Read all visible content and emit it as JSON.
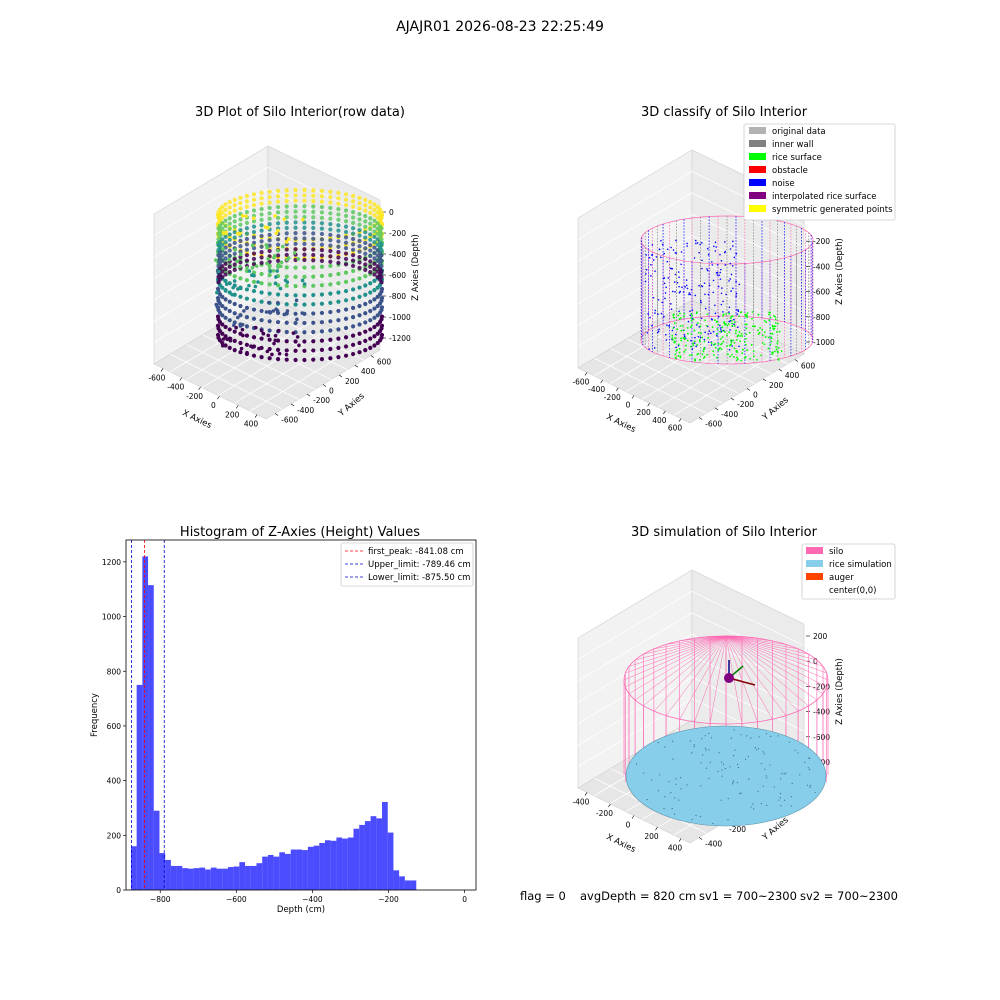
{
  "figure": {
    "suptitle": "AJAJR01 2026-08-23 22:25:49",
    "footer": {
      "flag": "flag = 0",
      "avg_depth": "avgDepth = 820 cm",
      "sv1": "sv1 = 700~2300",
      "sv2": "sv2 = 700~2300"
    }
  },
  "chart_data": [
    {
      "id": "raw3d",
      "type": "scatter",
      "title": "3D Plot of Silo Interior(row data)",
      "xlabel": "X Axies",
      "ylabel": "Y Axies",
      "zlabel": "Z Axies (Depth)",
      "xticks": [
        "-600",
        "-400",
        "-200",
        "0",
        "200",
        "400"
      ],
      "yticks": [
        "-600",
        "-400",
        "-200",
        "0",
        "200",
        "400",
        "600"
      ],
      "zticks": [
        "0",
        "-200",
        "-400",
        "-600",
        "-800",
        "-1000",
        "-1200"
      ],
      "colormap": [
        "#440154",
        "#3b528b",
        "#21918c",
        "#5ec962",
        "#fde725"
      ],
      "colorbar": false,
      "legend": "none",
      "grid": true
    },
    {
      "id": "classify3d",
      "type": "scatter",
      "title": "3D classify of Silo Interior",
      "xlabel": "X Axies",
      "ylabel": "Y Axies",
      "zlabel": "Z Axies (Depth)",
      "xticks": [
        "-600",
        "-400",
        "-200",
        "0",
        "200",
        "400",
        "600"
      ],
      "yticks": [
        "-600",
        "-400",
        "-200",
        "0",
        "200",
        "400",
        "600"
      ],
      "zticks": [
        "0",
        "-200",
        "-400",
        "-600",
        "-800",
        "-1000"
      ],
      "legend_placement": "top-right",
      "grid": true,
      "series": [
        {
          "name": "original data",
          "color": "#b3b3b3"
        },
        {
          "name": "inner wall",
          "color": "#808080"
        },
        {
          "name": "rice surface",
          "color": "#00ff00"
        },
        {
          "name": "obstacle",
          "color": "#ff0000"
        },
        {
          "name": "noise",
          "color": "#0000ff"
        },
        {
          "name": "interpolated rice surface",
          "color": "#800080"
        },
        {
          "name": "symmetric generated points",
          "color": "#ffff00"
        }
      ]
    },
    {
      "id": "histogram",
      "type": "bar",
      "title": "Histogram of Z-Axies (Height) Values",
      "xlabel": "Depth (cm)",
      "ylabel": "Frequency",
      "xlim": [
        -890,
        30
      ],
      "ylim": [
        0,
        1280
      ],
      "xticks": [
        -800,
        -600,
        -400,
        -200,
        0
      ],
      "yticks": [
        0,
        200,
        400,
        600,
        800,
        1000,
        1200
      ],
      "bar_color": "#0000ff",
      "bar_alpha": 0.7,
      "bin_start": -877,
      "bin_width": 15,
      "values": [
        160,
        750,
        1220,
        1115,
        290,
        135,
        110,
        88,
        88,
        80,
        78,
        80,
        82,
        75,
        82,
        78,
        78,
        84,
        86,
        102,
        88,
        88,
        98,
        122,
        128,
        122,
        138,
        132,
        148,
        148,
        146,
        158,
        162,
        172,
        182,
        180,
        192,
        188,
        192,
        224,
        238,
        252,
        270,
        262,
        322,
        210,
        72,
        50,
        35,
        35
      ],
      "legend_placement": "upper right",
      "vlines": [
        {
          "label": "first_peak: -841.08 cm",
          "x": -841.08,
          "color": "#ff0000"
        },
        {
          "label": "Upper_limit: -789.46 cm",
          "x": -789.46,
          "color": "#0000cc"
        },
        {
          "label": "Lower_limit: -875.50 cm",
          "x": -875.5,
          "color": "#0000cc"
        }
      ]
    },
    {
      "id": "simulation3d",
      "type": "scatter",
      "title": "3D simulation of Silo Interior",
      "xlabel": "X Axies",
      "ylabel": "Y Axies",
      "zlabel": "Z Axies (Depth)",
      "xticks": [
        "-400",
        "-200",
        "0",
        "200",
        "400"
      ],
      "yticks": [
        "-400",
        "-200",
        "0",
        "200",
        "400"
      ],
      "zticks": [
        "200",
        "0",
        "-200",
        "-400",
        "-600",
        "-800"
      ],
      "legend_placement": "top-right",
      "grid": true,
      "series": [
        {
          "name": "silo",
          "color": "#ff69b4"
        },
        {
          "name": "rice simulation",
          "color": "#87ceeb"
        },
        {
          "name": "auger",
          "color": "#ff4500"
        },
        {
          "name": "center(0,0)",
          "color": "#ffffff"
        }
      ]
    }
  ]
}
